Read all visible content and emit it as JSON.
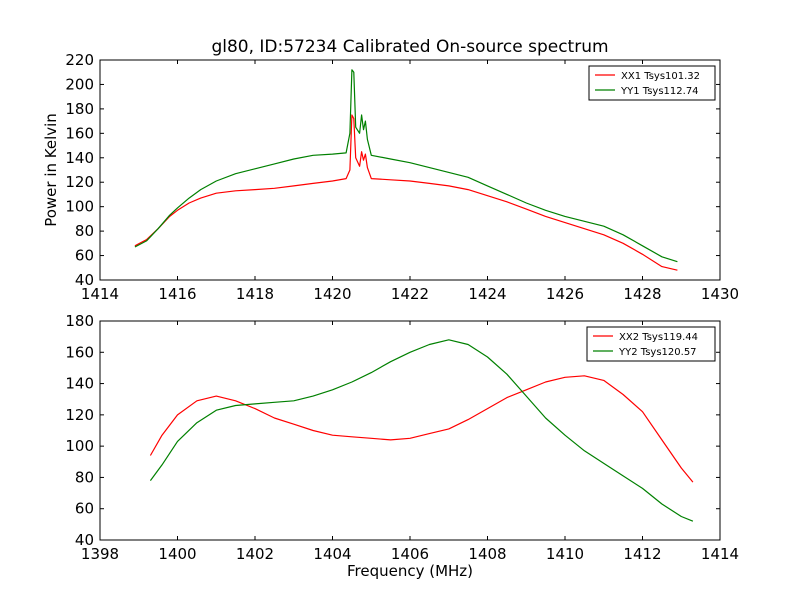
{
  "figure": {
    "title": "gl80, ID:57234 Calibrated On-source spectrum"
  },
  "chart_data": [
    {
      "type": "line",
      "title": "gl80, ID:57234 Calibrated On-source spectrum",
      "xlabel": "",
      "ylabel": "Power in Kelvin",
      "xlim": [
        1414,
        1430
      ],
      "ylim": [
        40,
        220
      ],
      "xticks": [
        1414,
        1416,
        1418,
        1420,
        1422,
        1424,
        1426,
        1428,
        1430
      ],
      "yticks": [
        40,
        60,
        80,
        100,
        120,
        140,
        160,
        180,
        200,
        220
      ],
      "grid": false,
      "legend": "top-right",
      "series": [
        {
          "name": "XX1 Tsys101.32",
          "color": "#ff0000",
          "points": [
            [
              1414.9,
              68
            ],
            [
              1415.2,
              73
            ],
            [
              1415.5,
              82
            ],
            [
              1415.8,
              92
            ],
            [
              1416.0,
              97
            ],
            [
              1416.3,
              103
            ],
            [
              1416.6,
              107
            ],
            [
              1417.0,
              111
            ],
            [
              1417.5,
              113
            ],
            [
              1418.0,
              114
            ],
            [
              1418.5,
              115
            ],
            [
              1419.0,
              117
            ],
            [
              1419.5,
              119
            ],
            [
              1420.0,
              121
            ],
            [
              1420.35,
              123
            ],
            [
              1420.45,
              130
            ],
            [
              1420.5,
              175
            ],
            [
              1420.55,
              172
            ],
            [
              1420.6,
              140
            ],
            [
              1420.7,
              133
            ],
            [
              1420.75,
              145
            ],
            [
              1420.8,
              138
            ],
            [
              1420.85,
              143
            ],
            [
              1420.9,
              132
            ],
            [
              1421.0,
              123
            ],
            [
              1421.5,
              122
            ],
            [
              1422.0,
              121
            ],
            [
              1422.5,
              119
            ],
            [
              1423.0,
              117
            ],
            [
              1423.5,
              114
            ],
            [
              1424.0,
              109
            ],
            [
              1424.5,
              104
            ],
            [
              1425.0,
              98
            ],
            [
              1425.5,
              92
            ],
            [
              1426.0,
              87
            ],
            [
              1426.5,
              82
            ],
            [
              1427.0,
              77
            ],
            [
              1427.5,
              70
            ],
            [
              1428.0,
              61
            ],
            [
              1428.5,
              51
            ],
            [
              1428.9,
              48
            ]
          ]
        },
        {
          "name": "YY1 Tsys112.74",
          "color": "#008000",
          "points": [
            [
              1414.9,
              67
            ],
            [
              1415.2,
              72
            ],
            [
              1415.5,
              82
            ],
            [
              1415.8,
              93
            ],
            [
              1416.0,
              99
            ],
            [
              1416.3,
              107
            ],
            [
              1416.6,
              114
            ],
            [
              1417.0,
              121
            ],
            [
              1417.5,
              127
            ],
            [
              1418.0,
              131
            ],
            [
              1418.5,
              135
            ],
            [
              1419.0,
              139
            ],
            [
              1419.5,
              142
            ],
            [
              1420.0,
              143
            ],
            [
              1420.35,
              144
            ],
            [
              1420.45,
              160
            ],
            [
              1420.5,
              212
            ],
            [
              1420.55,
              210
            ],
            [
              1420.6,
              165
            ],
            [
              1420.7,
              160
            ],
            [
              1420.75,
              175
            ],
            [
              1420.8,
              163
            ],
            [
              1420.85,
              170
            ],
            [
              1420.9,
              155
            ],
            [
              1421.0,
              142
            ],
            [
              1421.5,
              139
            ],
            [
              1422.0,
              136
            ],
            [
              1422.5,
              132
            ],
            [
              1423.0,
              128
            ],
            [
              1423.5,
              124
            ],
            [
              1424.0,
              117
            ],
            [
              1424.5,
              110
            ],
            [
              1425.0,
              103
            ],
            [
              1425.5,
              97
            ],
            [
              1426.0,
              92
            ],
            [
              1426.5,
              88
            ],
            [
              1427.0,
              84
            ],
            [
              1427.5,
              77
            ],
            [
              1428.0,
              68
            ],
            [
              1428.5,
              59
            ],
            [
              1428.9,
              55
            ]
          ]
        }
      ]
    },
    {
      "type": "line",
      "title": "",
      "xlabel": "Frequency (MHz)",
      "ylabel": "",
      "xlim": [
        1398,
        1414
      ],
      "ylim": [
        40,
        180
      ],
      "xticks": [
        1398,
        1400,
        1402,
        1404,
        1406,
        1408,
        1410,
        1412,
        1414
      ],
      "yticks": [
        40,
        60,
        80,
        100,
        120,
        140,
        160,
        180
      ],
      "grid": false,
      "legend": "top-right",
      "series": [
        {
          "name": "XX2 Tsys119.44",
          "color": "#ff0000",
          "points": [
            [
              1399.3,
              94
            ],
            [
              1399.6,
              107
            ],
            [
              1400.0,
              120
            ],
            [
              1400.5,
              129
            ],
            [
              1401.0,
              132
            ],
            [
              1401.5,
              129
            ],
            [
              1402.0,
              124
            ],
            [
              1402.5,
              118
            ],
            [
              1403.0,
              114
            ],
            [
              1403.5,
              110
            ],
            [
              1404.0,
              107
            ],
            [
              1404.5,
              106
            ],
            [
              1405.0,
              105
            ],
            [
              1405.5,
              104
            ],
            [
              1406.0,
              105
            ],
            [
              1406.5,
              108
            ],
            [
              1407.0,
              111
            ],
            [
              1407.5,
              117
            ],
            [
              1408.0,
              124
            ],
            [
              1408.5,
              131
            ],
            [
              1409.0,
              136
            ],
            [
              1409.5,
              141
            ],
            [
              1410.0,
              144
            ],
            [
              1410.5,
              145
            ],
            [
              1411.0,
              142
            ],
            [
              1411.5,
              133
            ],
            [
              1412.0,
              122
            ],
            [
              1412.5,
              104
            ],
            [
              1413.0,
              86
            ],
            [
              1413.3,
              77
            ]
          ]
        },
        {
          "name": "YY2 Tsys120.57",
          "color": "#008000",
          "points": [
            [
              1399.3,
              78
            ],
            [
              1399.6,
              88
            ],
            [
              1400.0,
              103
            ],
            [
              1400.5,
              115
            ],
            [
              1401.0,
              123
            ],
            [
              1401.5,
              126
            ],
            [
              1402.0,
              127
            ],
            [
              1402.5,
              128
            ],
            [
              1403.0,
              129
            ],
            [
              1403.5,
              132
            ],
            [
              1404.0,
              136
            ],
            [
              1404.5,
              141
            ],
            [
              1405.0,
              147
            ],
            [
              1405.5,
              154
            ],
            [
              1406.0,
              160
            ],
            [
              1406.5,
              165
            ],
            [
              1407.0,
              168
            ],
            [
              1407.5,
              165
            ],
            [
              1408.0,
              157
            ],
            [
              1408.5,
              146
            ],
            [
              1409.0,
              132
            ],
            [
              1409.5,
              118
            ],
            [
              1410.0,
              107
            ],
            [
              1410.5,
              97
            ],
            [
              1411.0,
              89
            ],
            [
              1411.5,
              81
            ],
            [
              1412.0,
              73
            ],
            [
              1412.5,
              63
            ],
            [
              1413.0,
              55
            ],
            [
              1413.3,
              52
            ]
          ]
        }
      ]
    }
  ]
}
